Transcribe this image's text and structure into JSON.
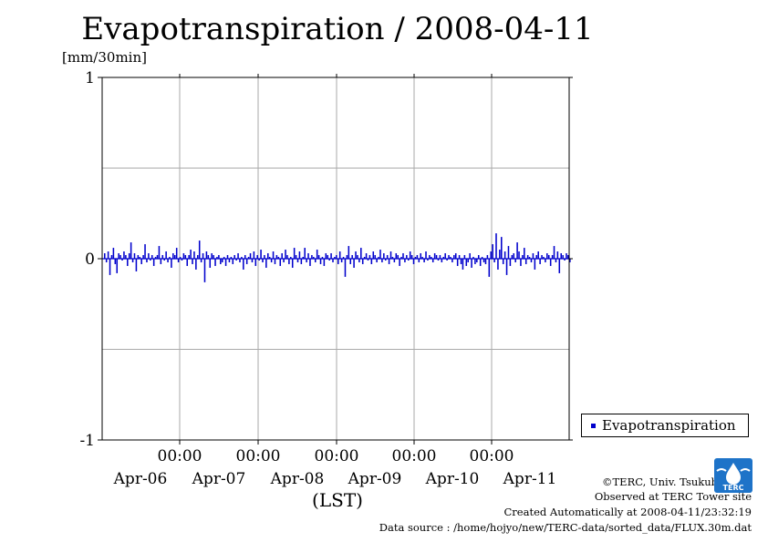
{
  "title": "Evapotranspiration / 2008-04-11",
  "unit_label": "[mm/30min]",
  "x_axis_label": "(LST)",
  "legend": {
    "label": "Evapotranspiration"
  },
  "footer": {
    "copyright": "©TERC, Univ. Tsukuba",
    "observed": "Observed at TERC Tower site",
    "created": "Created Automatically at 2008-04-11/23:32:19",
    "source": "Data source : /home/hojyo/new/TERC-data/sorted_data/FLUX.30m.dat"
  },
  "logo_text": "TERC",
  "colors": {
    "series": "#0000cc",
    "grid": "#aaaaaa",
    "logo": "#1e73c8"
  },
  "chart_data": {
    "type": "bar",
    "ylabel": "[mm/30min]",
    "xlabel": "(LST)",
    "ylim": [
      -1,
      1
    ],
    "y_ticks": [
      "1",
      "0",
      "-1"
    ],
    "y_tick_values": [
      1,
      0,
      -1
    ],
    "x_ticks": [
      {
        "time": "00:00",
        "date": "Apr-06"
      },
      {
        "time": "00:00",
        "date": "Apr-07"
      },
      {
        "time": "00:00",
        "date": "Apr-08"
      },
      {
        "time": "00:00",
        "date": "Apr-09"
      },
      {
        "time": "00:00",
        "date": "Apr-10"
      },
      {
        "time": "00:00",
        "date": "Apr-11"
      }
    ],
    "grid": true,
    "legend_position": "bottom-right outside",
    "series": [
      {
        "name": "Evapotranspiration",
        "interval_minutes": 30,
        "values": [
          0.03,
          -0.02,
          0.04,
          -0.09,
          0.02,
          0.06,
          -0.03,
          -0.08,
          0.03,
          0.02,
          -0.01,
          0.04,
          0.02,
          -0.04,
          0.03,
          0.09,
          -0.02,
          0.03,
          -0.07,
          0.02,
          0.01,
          -0.03,
          0.02,
          0.08,
          -0.02,
          0.03,
          -0.01,
          0.02,
          -0.04,
          0.01,
          0.02,
          0.07,
          -0.03,
          0.02,
          -0.01,
          0.04,
          -0.02,
          0.01,
          -0.05,
          0.03,
          0.02,
          0.06,
          -0.02,
          0.01,
          -0.01,
          0.03,
          0.02,
          -0.04,
          0.02,
          0.05,
          -0.03,
          0.04,
          -0.06,
          0.02,
          0.1,
          -0.02,
          0.03,
          -0.13,
          0.04,
          0.02,
          -0.05,
          0.03,
          0.02,
          -0.04,
          0.01,
          0.02,
          -0.03,
          -0.02,
          0.01,
          -0.04,
          0.02,
          -0.02,
          0.01,
          -0.03,
          0.02,
          -0.01,
          0.03,
          -0.02,
          0.01,
          -0.06,
          0.02,
          -0.03,
          0.01,
          0.03,
          -0.02,
          0.04,
          -0.04,
          0.02,
          -0.01,
          0.05,
          -0.02,
          0.02,
          -0.05,
          0.03,
          0.01,
          -0.02,
          0.04,
          -0.03,
          0.02,
          0.01,
          -0.04,
          0.03,
          -0.02,
          0.05,
          0.02,
          -0.03,
          0.01,
          -0.05,
          0.06,
          0.02,
          -0.02,
          0.04,
          -0.03,
          0.01,
          0.06,
          -0.02,
          0.03,
          -0.04,
          0.02,
          0.01,
          -0.02,
          0.05,
          0.02,
          -0.03,
          0.01,
          -0.04,
          0.03,
          0.02,
          -0.01,
          0.03,
          -0.02,
          0.01,
          0.02,
          -0.03,
          0.04,
          -0.02,
          0.01,
          -0.1,
          0.02,
          0.07,
          -0.03,
          0.02,
          -0.05,
          0.04,
          0.02,
          -0.02,
          0.06,
          -0.03,
          0.01,
          0.03,
          -0.01,
          0.02,
          -0.03,
          0.04,
          0.02,
          -0.02,
          0.01,
          0.05,
          -0.02,
          0.03,
          -0.01,
          0.02,
          -0.03,
          0.04,
          0.01,
          -0.02,
          0.03,
          0.02,
          -0.04,
          0.01,
          0.03,
          -0.02,
          0.02,
          -0.01,
          0.04,
          0.02,
          -0.03,
          0.01,
          0.02,
          -0.02,
          0.03,
          0.01,
          -0.02,
          0.04,
          -0.01,
          0.02,
          0.01,
          -0.02,
          0.03,
          0.02,
          -0.01,
          0.02,
          -0.02,
          0.01,
          0.03,
          -0.01,
          0.02,
          0.01,
          -0.02,
          0.02,
          0.03,
          -0.04,
          0.02,
          -0.03,
          -0.06,
          0.02,
          -0.04,
          -0.02,
          0.03,
          -0.05,
          0.01,
          -0.03,
          -0.02,
          0.02,
          -0.04,
          0.01,
          -0.02,
          -0.03,
          0.02,
          -0.1,
          0.04,
          0.08,
          -0.02,
          0.14,
          -0.06,
          0.05,
          0.12,
          -0.03,
          0.04,
          -0.09,
          0.07,
          -0.04,
          0.02,
          0.03,
          -0.02,
          0.09,
          0.04,
          -0.04,
          0.02,
          0.06,
          -0.03,
          0.02,
          0.01,
          -0.02,
          0.03,
          -0.06,
          0.02,
          0.04,
          -0.03,
          0.02,
          0.01,
          -0.02,
          0.03,
          0.02,
          -0.04,
          0.02,
          0.07,
          -0.02,
          0.04,
          -0.08,
          0.03,
          0.02,
          -0.01,
          0.03,
          0.02,
          -0.02
        ]
      }
    ]
  }
}
